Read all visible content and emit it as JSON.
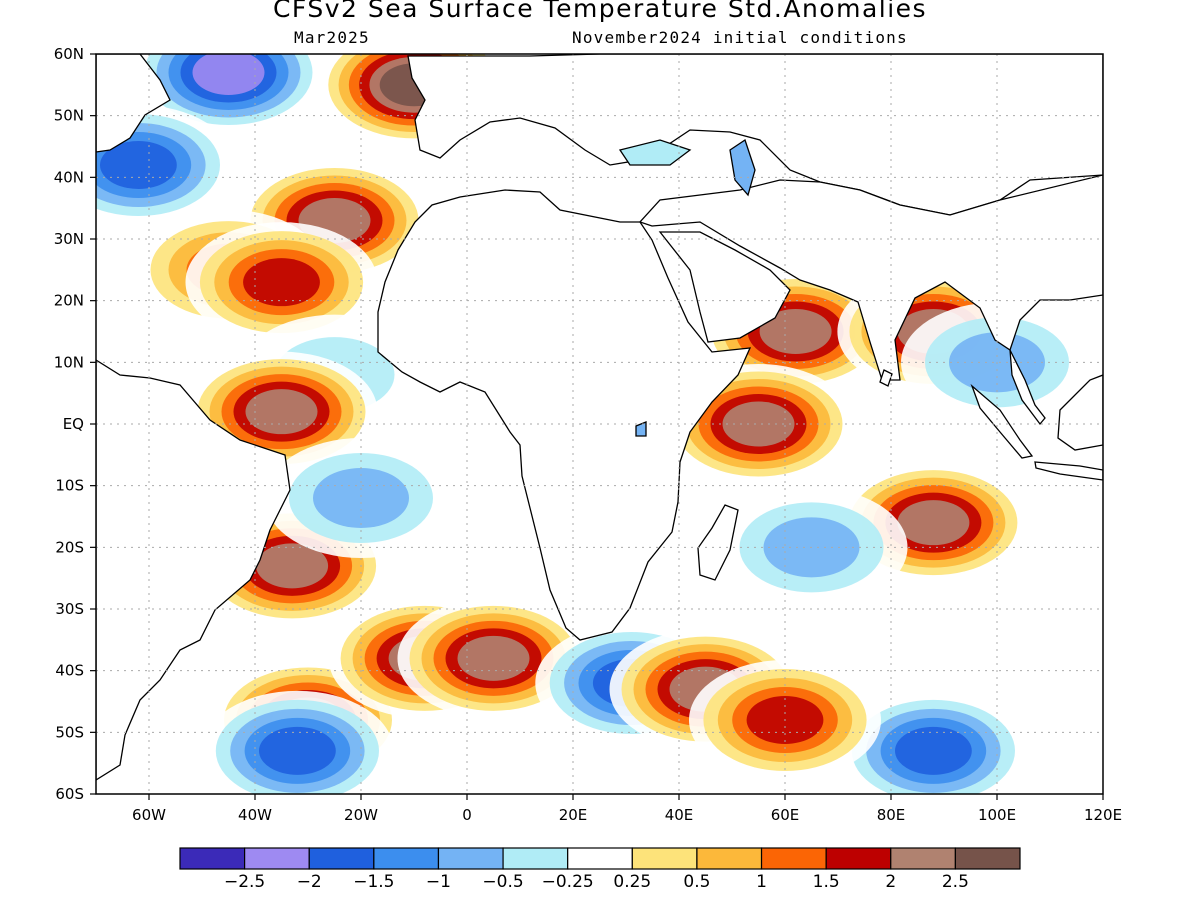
{
  "title": "CFSv2 Sea Surface Temperature Std.Anomalies",
  "valid_month": "Mar2025",
  "init_conditions": "November2024 initial conditions",
  "colors": {
    "land": "#ffffff",
    "coast": "#000000",
    "grid": "#aaaaaa",
    "levels": [
      "#3b2ab8",
      "#9e8af2",
      "#1f60de",
      "#3c8eee",
      "#74b3f4",
      "#b0ecf6",
      "#ffffff",
      "#fde37a",
      "#fcb83a",
      "#fb6505",
      "#bd0000",
      "#b08270",
      "#76534a"
    ]
  },
  "map": {
    "lon_range": [
      -70,
      120
    ],
    "lat_range": [
      -60,
      60
    ],
    "lat_ticks": [
      {
        "value": 60,
        "label": "60N"
      },
      {
        "value": 50,
        "label": "50N"
      },
      {
        "value": 40,
        "label": "40N"
      },
      {
        "value": 30,
        "label": "30N"
      },
      {
        "value": 20,
        "label": "20N"
      },
      {
        "value": 10,
        "label": "10N"
      },
      {
        "value": 0,
        "label": "EQ"
      },
      {
        "value": -10,
        "label": "10S"
      },
      {
        "value": -20,
        "label": "20S"
      },
      {
        "value": -30,
        "label": "30S"
      },
      {
        "value": -40,
        "label": "40S"
      },
      {
        "value": -50,
        "label": "50S"
      },
      {
        "value": -60,
        "label": "60S"
      }
    ],
    "lon_ticks": [
      {
        "value": -60,
        "label": "60W"
      },
      {
        "value": -40,
        "label": "40W"
      },
      {
        "value": -20,
        "label": "20W"
      },
      {
        "value": 0,
        "label": "0"
      },
      {
        "value": 20,
        "label": "20E"
      },
      {
        "value": 40,
        "label": "40E"
      },
      {
        "value": 60,
        "label": "60E"
      },
      {
        "value": 80,
        "label": "80E"
      },
      {
        "value": 100,
        "label": "100E"
      },
      {
        "value": 120,
        "label": "120E"
      }
    ]
  },
  "colorbar": {
    "labels": [
      "-2.5",
      "-2",
      "-1.5",
      "-1",
      "-0.5",
      "-0.25",
      "0.25",
      "0.5",
      "1",
      "1.5",
      "2",
      "2.5"
    ]
  },
  "anomaly_features": [
    {
      "lon": -25,
      "lat": 33,
      "value": 2.5
    },
    {
      "lon": -10,
      "lat": 55,
      "value": 3
    },
    {
      "lon": -45,
      "lat": 25,
      "value": 1.5
    },
    {
      "lon": -35,
      "lat": 23,
      "value": 2
    },
    {
      "lon": -45,
      "lat": 57,
      "value": -2.5
    },
    {
      "lon": -62,
      "lat": 42,
      "value": -2
    },
    {
      "lon": -25,
      "lat": 8,
      "value": -0.5
    },
    {
      "lon": -35,
      "lat": 2,
      "value": 2.5
    },
    {
      "lon": -33,
      "lat": -23,
      "value": 2.5
    },
    {
      "lon": -20,
      "lat": -12,
      "value": -1
    },
    {
      "lon": -30,
      "lat": -48,
      "value": 2.5
    },
    {
      "lon": -8,
      "lat": -38,
      "value": 2.5
    },
    {
      "lon": 5,
      "lat": -38,
      "value": 2.5
    },
    {
      "lon": -32,
      "lat": -53,
      "value": -2
    },
    {
      "lon": 31,
      "lat": -42,
      "value": -2
    },
    {
      "lon": 45,
      "lat": -43,
      "value": 2.5
    },
    {
      "lon": 62,
      "lat": 15,
      "value": 2.5
    },
    {
      "lon": 88,
      "lat": 15,
      "value": 2.5
    },
    {
      "lon": 55,
      "lat": 0,
      "value": 2.5
    },
    {
      "lon": 88,
      "lat": -16,
      "value": 2.5
    },
    {
      "lon": 65,
      "lat": -20,
      "value": -1
    },
    {
      "lon": 100,
      "lat": 10,
      "value": -1
    },
    {
      "lon": 88,
      "lat": -53,
      "value": -2
    },
    {
      "lon": 60,
      "lat": -48,
      "value": 2
    }
  ]
}
